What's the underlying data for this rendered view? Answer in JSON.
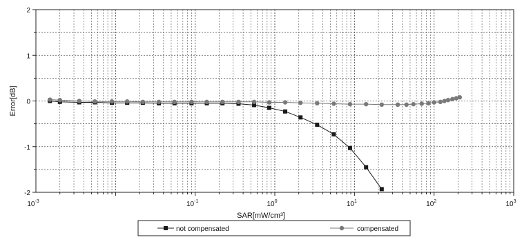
{
  "chart_data": {
    "type": "line",
    "title": "",
    "xlabel": "SAR[mW/cm³]",
    "ylabel": "Error[dB]",
    "xscale": "log",
    "xlim": [
      0.001,
      1000
    ],
    "ylim": [
      -2,
      2
    ],
    "x_ticks": [
      {
        "value": 0.001,
        "base": "10",
        "exp": "-3"
      },
      {
        "value": 0.1,
        "base": "10",
        "exp": "-1"
      },
      {
        "value": 1,
        "base": "10",
        "exp": "0"
      },
      {
        "value": 10,
        "base": "10",
        "exp": "1"
      },
      {
        "value": 100,
        "base": "10",
        "exp": "2"
      },
      {
        "value": 1000,
        "base": "10",
        "exp": "3"
      }
    ],
    "y_ticks": [
      "2",
      "1",
      "0",
      "-1",
      "-2"
    ],
    "grid": true,
    "legend_position": "bottom",
    "series": [
      {
        "name": "not compensated",
        "marker": "square",
        "color": "#1a1a1a",
        "x": [
          0.0015,
          0.002,
          0.0035,
          0.0055,
          0.009,
          0.014,
          0.022,
          0.035,
          0.055,
          0.09,
          0.14,
          0.22,
          0.35,
          0.55,
          0.85,
          1.35,
          2.1,
          3.4,
          5.5,
          8.8,
          14,
          22
        ],
        "y": [
          0.0,
          -0.02,
          -0.03,
          -0.03,
          -0.04,
          -0.04,
          -0.04,
          -0.05,
          -0.05,
          -0.05,
          -0.05,
          -0.05,
          -0.06,
          -0.09,
          -0.15,
          -0.23,
          -0.36,
          -0.52,
          -0.73,
          -1.03,
          -1.45,
          -1.93
        ]
      },
      {
        "name": "compensated",
        "marker": "circle",
        "color": "#7a7a7a",
        "x": [
          0.0015,
          0.002,
          0.0035,
          0.0055,
          0.009,
          0.014,
          0.022,
          0.035,
          0.055,
          0.09,
          0.14,
          0.22,
          0.35,
          0.55,
          0.85,
          1.35,
          2.1,
          3.4,
          5.5,
          8.8,
          14,
          22,
          35,
          45,
          55,
          70,
          85,
          100,
          120,
          135,
          150,
          170,
          190,
          210
        ],
        "y": [
          0.03,
          0.02,
          0.0,
          -0.01,
          -0.01,
          -0.01,
          -0.02,
          -0.02,
          -0.02,
          -0.02,
          -0.02,
          -0.02,
          -0.02,
          -0.02,
          -0.03,
          -0.03,
          -0.04,
          -0.05,
          -0.06,
          -0.07,
          -0.07,
          -0.08,
          -0.08,
          -0.08,
          -0.07,
          -0.06,
          -0.05,
          -0.03,
          -0.02,
          0.0,
          0.02,
          0.04,
          0.06,
          0.08
        ]
      }
    ]
  }
}
